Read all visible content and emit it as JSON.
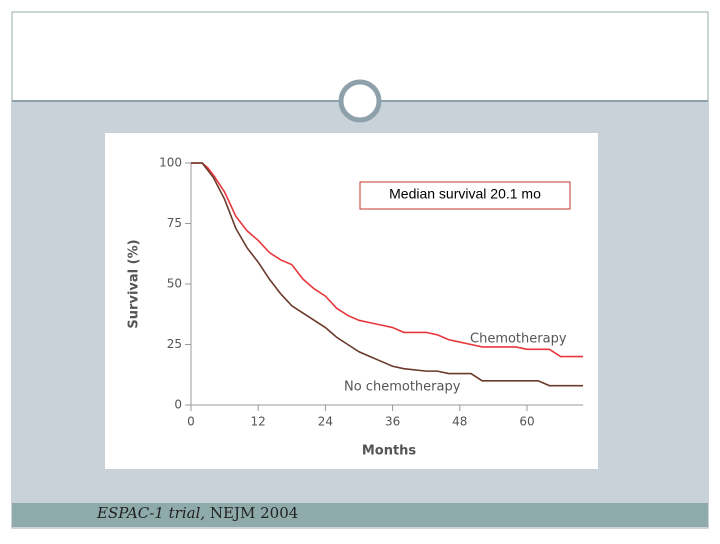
{
  "chart_data": {
    "type": "line",
    "ylabel": "Survival (%)",
    "xlabel": "Months",
    "annotation": "Median survival 20.1 mo",
    "x": [
      0,
      2,
      3,
      4,
      6,
      8,
      10,
      12,
      14,
      16,
      18,
      20,
      22,
      24,
      26,
      28,
      30,
      32,
      34,
      36,
      38,
      42,
      44,
      46,
      48,
      50,
      52,
      54,
      58,
      60,
      62,
      64,
      66,
      70
    ],
    "series": [
      {
        "name": "Chemotherapy",
        "color": "#e8383d",
        "values": [
          100,
          100,
          98,
          95,
          88,
          78,
          72,
          68,
          63,
          60,
          58,
          52,
          48,
          45,
          40,
          37,
          35,
          34,
          33,
          32,
          30,
          30,
          29,
          27,
          26,
          25,
          24,
          24,
          24,
          23,
          23,
          23,
          20,
          20
        ]
      },
      {
        "name": "No chemotherapy",
        "color": "#6b3a2a",
        "values": [
          100,
          100,
          97,
          94,
          85,
          73,
          65,
          59,
          52,
          46,
          41,
          38,
          35,
          32,
          28,
          25,
          22,
          20,
          18,
          16,
          15,
          14,
          14,
          13,
          13,
          13,
          10,
          10,
          10,
          10,
          10,
          8,
          8,
          8
        ]
      }
    ],
    "xlim": [
      0,
      70
    ],
    "xticks": [
      0,
      12,
      24,
      36,
      48,
      60
    ],
    "ylim": [
      0,
      100
    ],
    "yticks": [
      0,
      25,
      50,
      75,
      100
    ]
  },
  "caption": {
    "source": "ESPAC-1 trial,",
    "journal": "NEJM 2004"
  }
}
